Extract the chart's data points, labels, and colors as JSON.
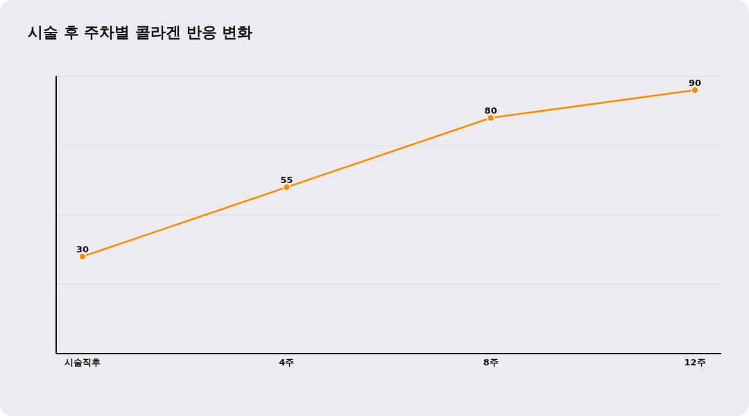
{
  "chart_data": {
    "type": "line",
    "title": "시술 후 주차별 콜라겐 반응 변화",
    "categories": [
      "시술직후",
      "4주",
      "8주",
      "12주"
    ],
    "series": [
      {
        "color": "#ff8c00",
        "values": [
          30,
          55,
          80,
          90
        ]
      }
    ],
    "ylim": [
      -5,
      95
    ],
    "yticks": [
      {
        "value": 20,
        "label": null
      },
      {
        "value": 45,
        "label": null
      },
      {
        "value": 70,
        "label": null
      },
      {
        "value": 95,
        "label": null
      }
    ],
    "tick_labels": "x",
    "grid": "y",
    "data_labels": true,
    "marker": "circle"
  }
}
